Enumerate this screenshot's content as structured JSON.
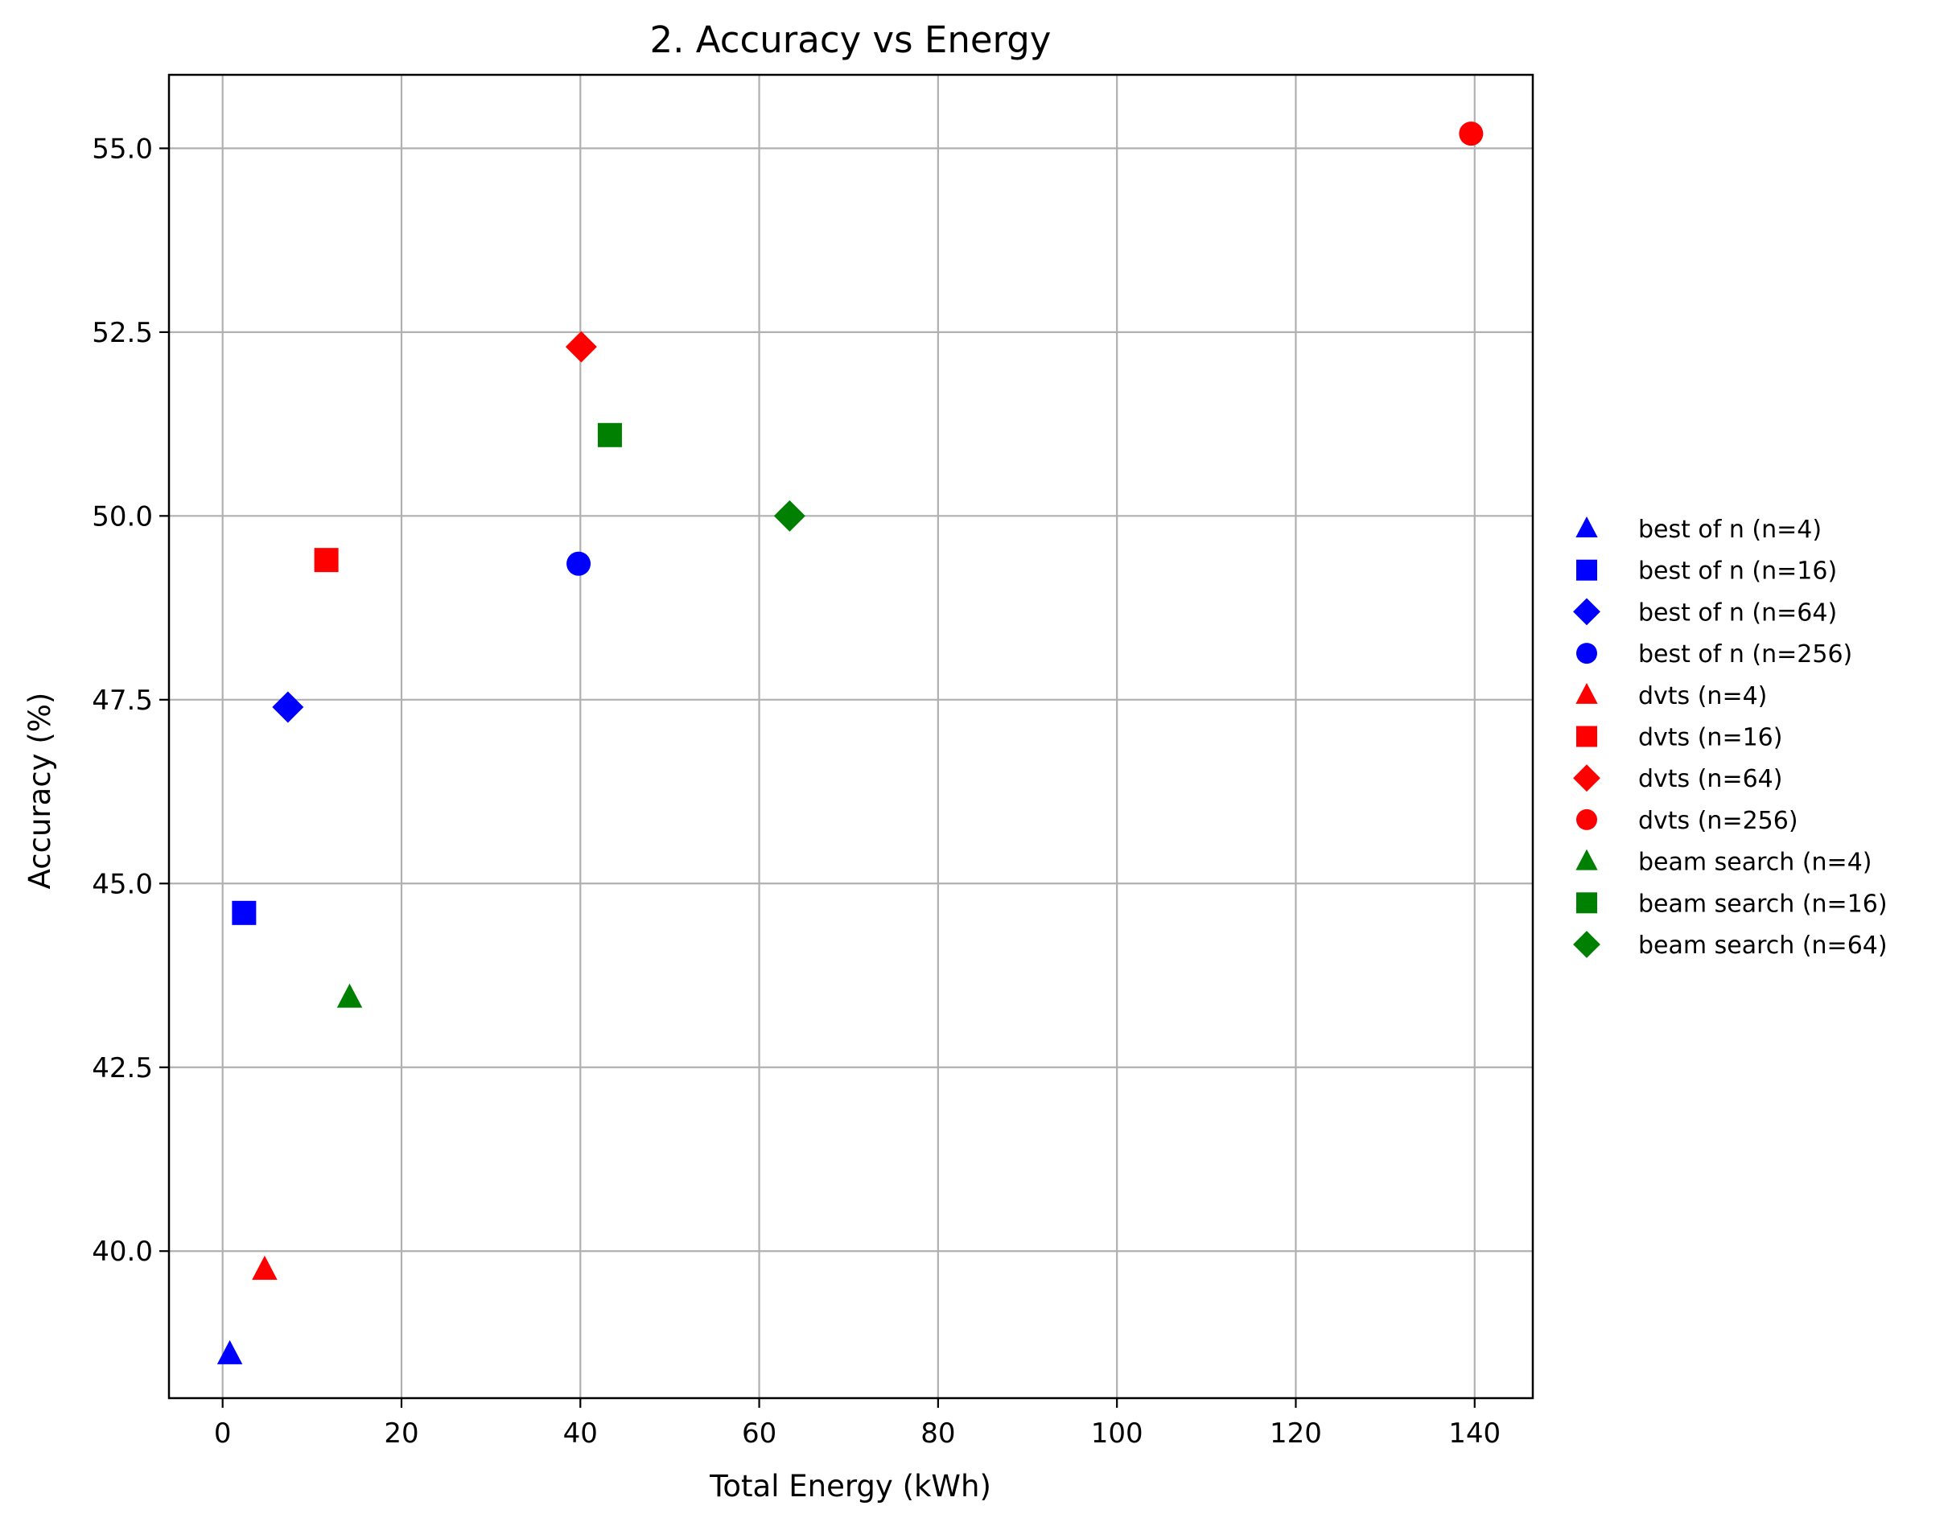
{
  "chart_data": {
    "type": "scatter",
    "title": "2. Accuracy vs Energy",
    "xlabel": "Total Energy (kWh)",
    "ylabel": "Accuracy (%)",
    "xlim": [
      -6,
      146.5
    ],
    "ylim": [
      38.0,
      56.0
    ],
    "x_ticks": [
      0,
      20,
      40,
      60,
      80,
      100,
      120,
      140
    ],
    "x_tick_labels": [
      "0",
      "20",
      "40",
      "60",
      "80",
      "100",
      "120",
      "140"
    ],
    "y_ticks": [
      40.0,
      42.5,
      45.0,
      47.5,
      50.0,
      52.5,
      55.0
    ],
    "y_tick_labels": [
      "40.0",
      "42.5",
      "45.0",
      "47.5",
      "50.0",
      "52.5",
      "55.0"
    ],
    "grid": true,
    "legend_position": "outside-right",
    "series": [
      {
        "name": "best of n (n=4)",
        "color": "#0000ff",
        "marker": "triangle",
        "x": 0.8,
        "y": 38.6
      },
      {
        "name": "best of n (n=16)",
        "color": "#0000ff",
        "marker": "square",
        "x": 2.4,
        "y": 44.6
      },
      {
        "name": "best of n (n=64)",
        "color": "#0000ff",
        "marker": "diamond",
        "x": 7.3,
        "y": 47.4
      },
      {
        "name": "best of n (n=256)",
        "color": "#0000ff",
        "marker": "circle",
        "x": 39.8,
        "y": 49.35
      },
      {
        "name": "dvts (n=4)",
        "color": "#ff0000",
        "marker": "triangle",
        "x": 4.7,
        "y": 39.75
      },
      {
        "name": "dvts (n=16)",
        "color": "#ff0000",
        "marker": "square",
        "x": 11.6,
        "y": 49.4
      },
      {
        "name": "dvts (n=64)",
        "color": "#ff0000",
        "marker": "diamond",
        "x": 40.1,
        "y": 52.3
      },
      {
        "name": "dvts (n=256)",
        "color": "#ff0000",
        "marker": "circle",
        "x": 139.6,
        "y": 55.2
      },
      {
        "name": "beam search (n=4)",
        "color": "#008000",
        "marker": "triangle",
        "x": 14.2,
        "y": 43.45
      },
      {
        "name": "beam search (n=16)",
        "color": "#008000",
        "marker": "square",
        "x": 43.3,
        "y": 51.1
      },
      {
        "name": "beam search (n=64)",
        "color": "#008000",
        "marker": "diamond",
        "x": 63.4,
        "y": 50.0
      }
    ]
  }
}
